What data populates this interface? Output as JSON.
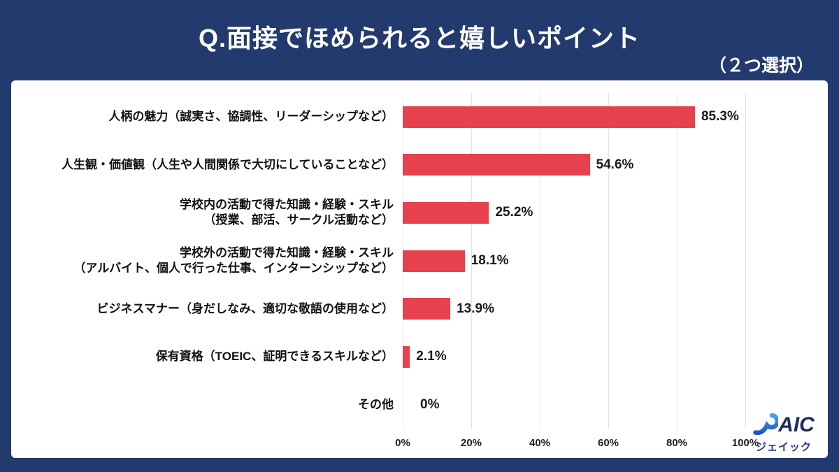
{
  "chart_data": {
    "type": "bar",
    "orientation": "horizontal",
    "title": "Q.面接でほめられると嬉しいポイント",
    "subtitle": "（２つ選択）",
    "categories": [
      [
        "人柄の魅力（誠実さ、協調性、リーダーシップなど）"
      ],
      [
        "人生観・価値観（人生や人間関係で大切にしていることなど）"
      ],
      [
        "学校内の活動で得た知識・経験・スキル",
        "（授業、部活、サークル活動など）"
      ],
      [
        "学校外の活動で得た知識・経験・スキル",
        "（アルバイト、個人で行った仕事、インターンシップなど）"
      ],
      [
        "ビジネスマナー（身だしなみ、適切な敬語の使用など）"
      ],
      [
        "保有資格（TOEIC、証明できるスキルなど）"
      ],
      [
        "その他"
      ]
    ],
    "values": [
      85.3,
      54.6,
      25.2,
      18.1,
      13.9,
      2.1,
      0
    ],
    "value_labels": [
      "85.3%",
      "54.6%",
      "25.2%",
      "18.1%",
      "13.9%",
      "2.1%",
      "0%"
    ],
    "x_ticks": [
      "0%",
      "20%",
      "40%",
      "60%",
      "80%",
      "100%"
    ],
    "xlim": [
      0,
      100
    ],
    "grid": true,
    "legend": "none",
    "bar_color": "#e8414e",
    "background_color": "#223a6d",
    "panel_color": "#ffffff"
  },
  "logo": {
    "name": "JAIC",
    "letters_after_j": "AIC",
    "katakana": "ジェイック",
    "j_color_top": "#45a6e8",
    "j_color_bottom": "#1f56c4"
  }
}
